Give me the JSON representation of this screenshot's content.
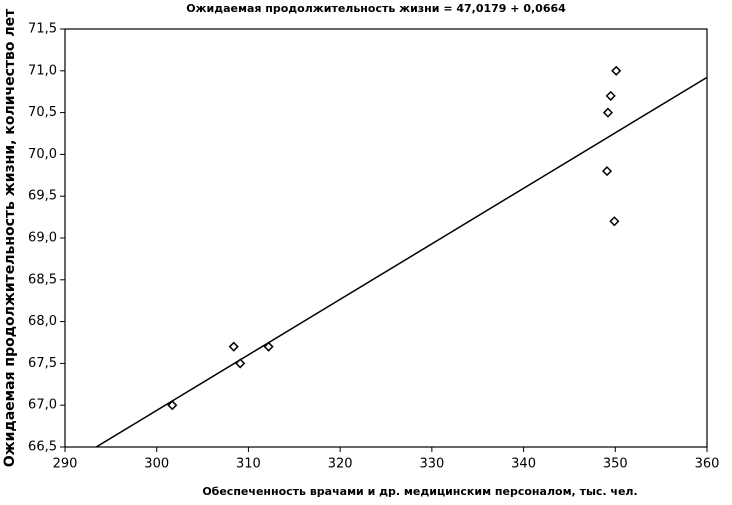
{
  "chart_data": {
    "type": "scatter",
    "title": "Ожидаемая продолжительность жизни = 47,0179 + 0,0664",
    "x_label": "Обеспеченность врачами и др. медицинским персоналом, тыс. чел.",
    "y_label": "Ожидаемая продолжительность жизни, количество лет",
    "x": [
      301.7,
      308.4,
      309.1,
      312.2,
      349.2,
      349.5,
      350.1,
      349.1,
      349.9
    ],
    "values": [
      67.0,
      67.7,
      67.5,
      67.7,
      70.5,
      70.7,
      71.0,
      69.8,
      69.2
    ],
    "color": "#000000",
    "fit": {
      "intercept": 47.0179,
      "slope": 0.0664
    },
    "xlim": [
      290,
      360
    ],
    "xticks": [
      290,
      300,
      310,
      320,
      330,
      340,
      350,
      360
    ],
    "ylim": [
      66.5,
      71.5
    ],
    "yticks": [
      {
        "value": 66.5,
        "label": "66,5"
      },
      {
        "value": 67,
        "label": "67,0"
      },
      {
        "value": 67.5,
        "label": "67,5"
      },
      {
        "value": 68,
        "label": "68,0"
      },
      {
        "value": 68.5,
        "label": "68,5"
      },
      {
        "value": 69,
        "label": "69,0"
      },
      {
        "value": 69.5,
        "label": "69,5"
      },
      {
        "value": 70,
        "label": "70,0"
      },
      {
        "value": 70.5,
        "label": "70,5"
      },
      {
        "value": 71,
        "label": "71,0"
      },
      {
        "value": 71.5,
        "label": "71,5"
      }
    ],
    "grid": false
  }
}
